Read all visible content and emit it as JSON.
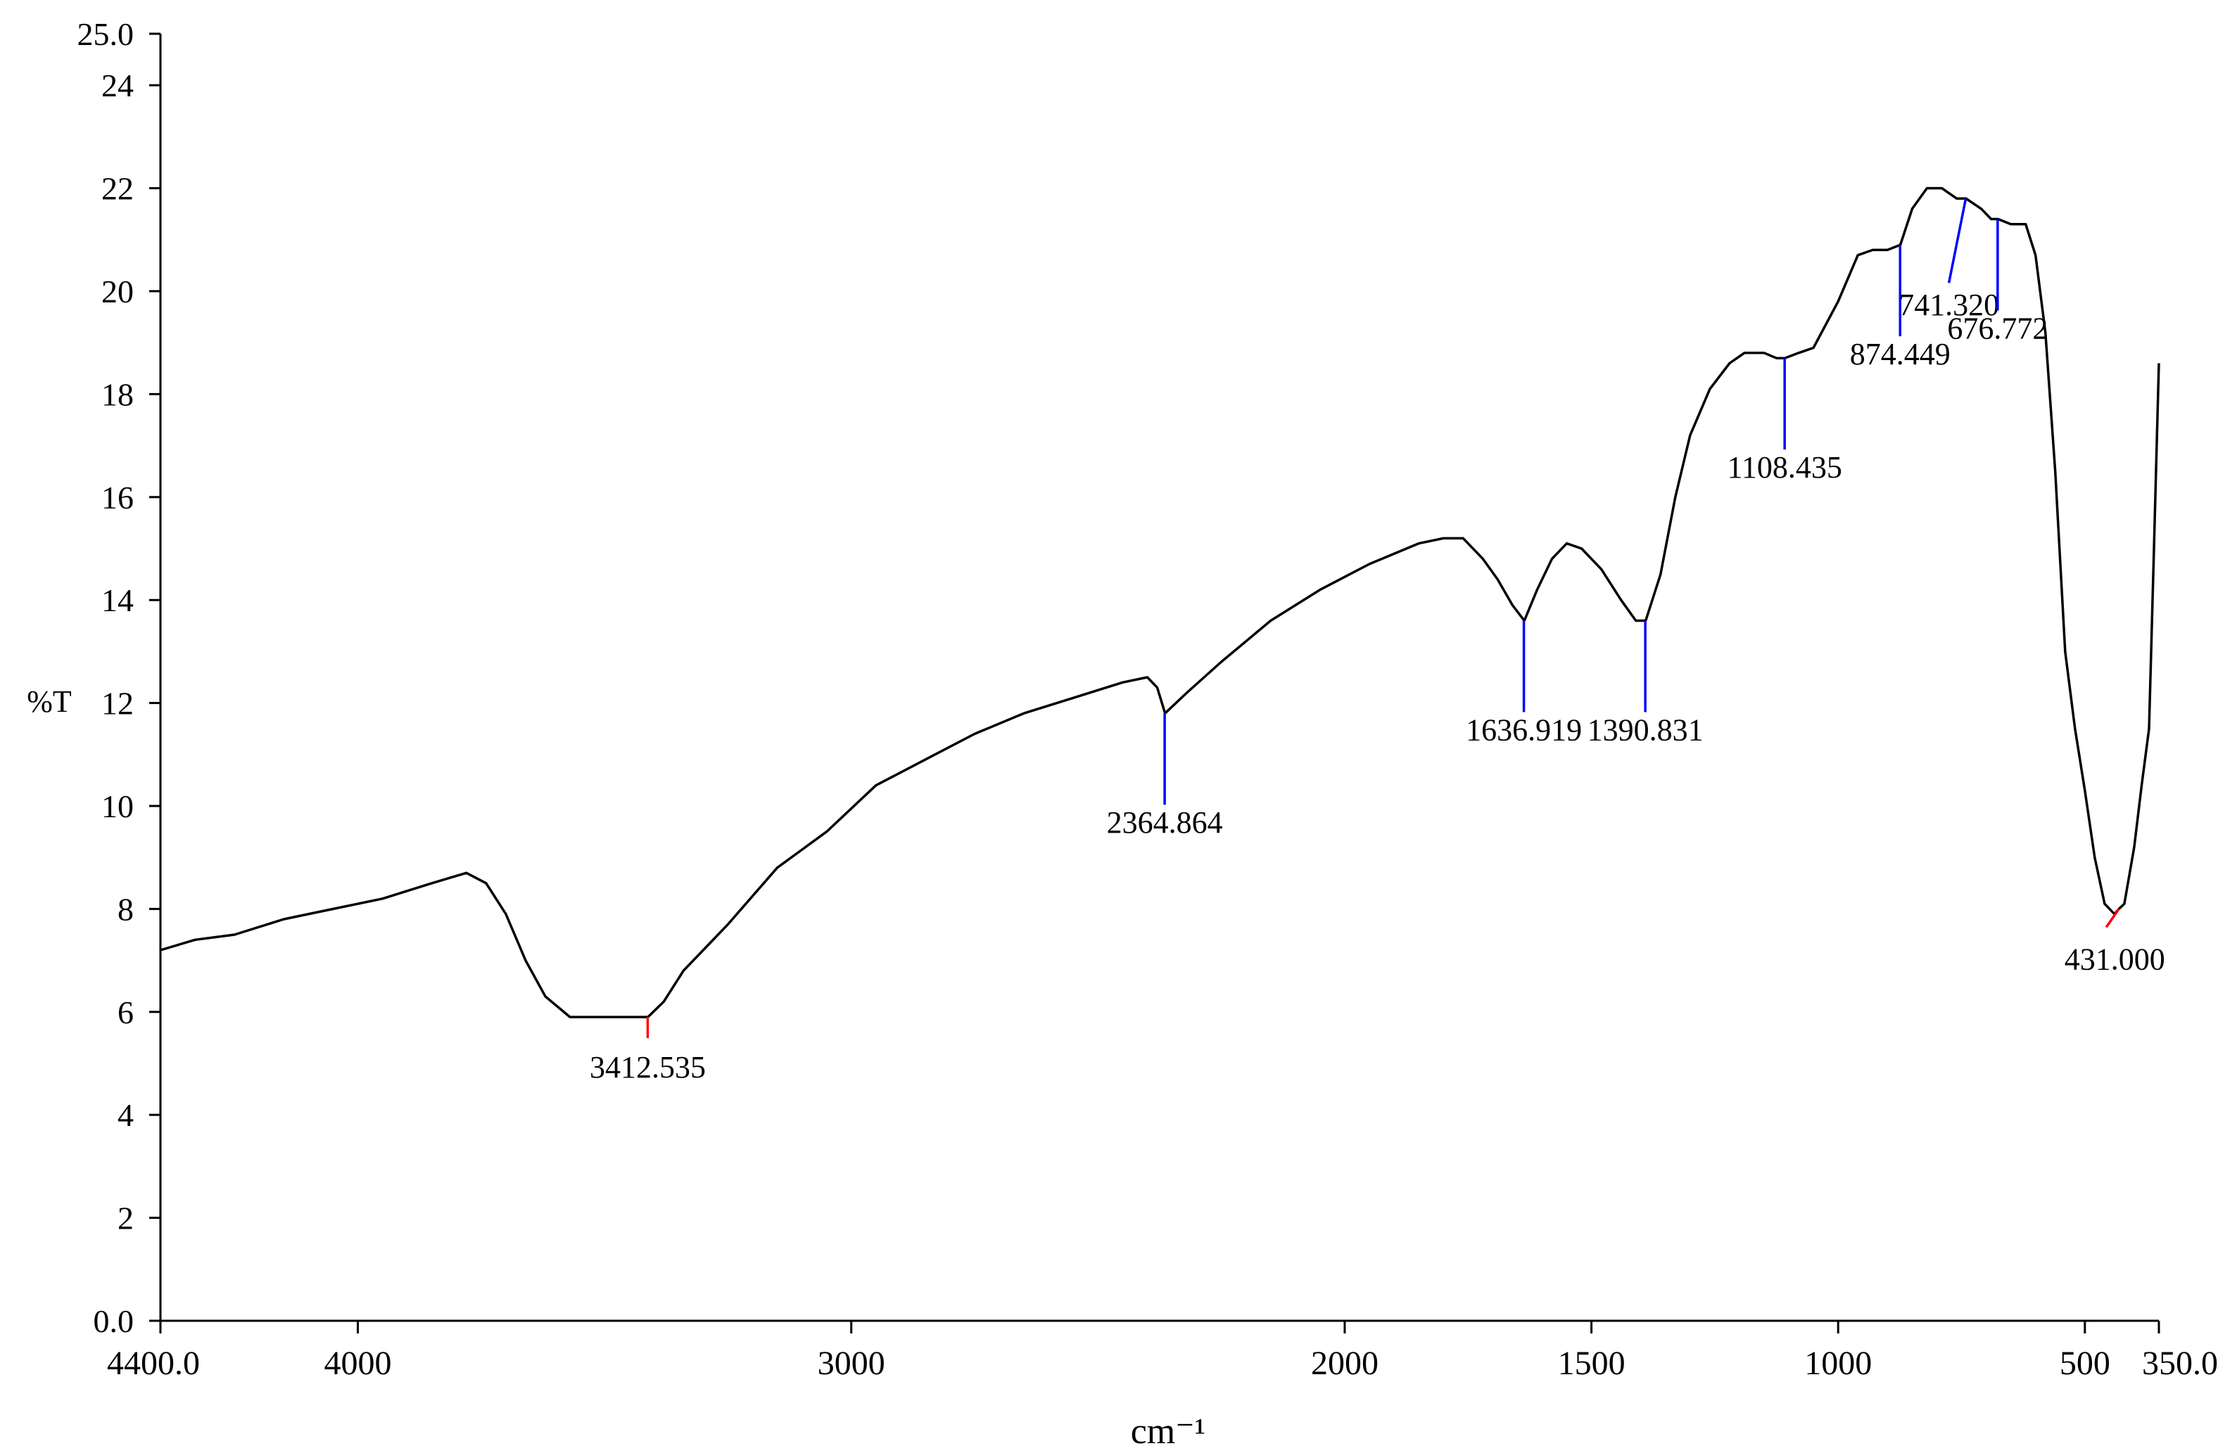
{
  "chart_data": {
    "type": "line",
    "xlabel": "cm⁻¹",
    "ylabel": "%T",
    "xlim": [
      4400,
      350
    ],
    "ylim": [
      0,
      25
    ],
    "x_ticks": [
      {
        "value": 4400,
        "label": "4400.0"
      },
      {
        "value": 4000,
        "label": "4000"
      },
      {
        "value": 3000,
        "label": "3000"
      },
      {
        "value": 2000,
        "label": "2000"
      },
      {
        "value": 1500,
        "label": "1500"
      },
      {
        "value": 1000,
        "label": "1000"
      },
      {
        "value": 500,
        "label": "500"
      },
      {
        "value": 350,
        "label": "350.0"
      }
    ],
    "y_ticks": [
      {
        "value": 0,
        "label": "0.0"
      },
      {
        "value": 2,
        "label": "2"
      },
      {
        "value": 4,
        "label": "4"
      },
      {
        "value": 6,
        "label": "6"
      },
      {
        "value": 8,
        "label": "8"
      },
      {
        "value": 10,
        "label": "10"
      },
      {
        "value": 12,
        "label": "12"
      },
      {
        "value": 14,
        "label": "14"
      },
      {
        "value": 16,
        "label": "16"
      },
      {
        "value": 18,
        "label": "18"
      },
      {
        "value": 20,
        "label": "20"
      },
      {
        "value": 22,
        "label": "22"
      },
      {
        "value": 24,
        "label": "24"
      },
      {
        "value": 25,
        "label": "25.0"
      }
    ],
    "grid": false,
    "series": [
      {
        "color": "#000000",
        "x": [
          4400,
          4330,
          4250,
          4150,
          4050,
          3950,
          3850,
          3780,
          3740,
          3700,
          3660,
          3620,
          3570,
          3530,
          3490,
          3450,
          3412,
          3380,
          3340,
          3250,
          3150,
          3050,
          2950,
          2850,
          2750,
          2650,
          2550,
          2450,
          2400,
          2380,
          2364,
          2320,
          2250,
          2150,
          2050,
          1950,
          1850,
          1800,
          1760,
          1720,
          1690,
          1660,
          1636,
          1610,
          1580,
          1550,
          1520,
          1480,
          1440,
          1410,
          1390,
          1360,
          1330,
          1300,
          1260,
          1220,
          1190,
          1150,
          1125,
          1108,
          1080,
          1050,
          1000,
          960,
          930,
          900,
          874,
          850,
          820,
          790,
          760,
          741,
          710,
          690,
          676,
          650,
          620,
          600,
          580,
          560,
          540,
          520,
          500,
          480,
          460,
          440,
          431,
          420,
          400,
          385,
          370,
          360,
          350
        ],
        "y": [
          7.2,
          7.4,
          7.5,
          7.8,
          8.0,
          8.2,
          8.5,
          8.7,
          8.5,
          7.9,
          7.0,
          6.3,
          5.9,
          5.9,
          5.9,
          5.9,
          5.9,
          6.2,
          6.8,
          7.7,
          8.8,
          9.5,
          10.4,
          10.9,
          11.4,
          11.8,
          12.1,
          12.4,
          12.5,
          12.3,
          11.8,
          12.2,
          12.8,
          13.6,
          14.2,
          14.7,
          15.1,
          15.2,
          15.2,
          14.8,
          14.4,
          13.9,
          13.6,
          14.2,
          14.8,
          15.1,
          15.0,
          14.6,
          14.0,
          13.6,
          13.6,
          14.5,
          16.0,
          17.2,
          18.1,
          18.6,
          18.8,
          18.8,
          18.7,
          18.7,
          18.8,
          18.9,
          19.8,
          20.7,
          20.8,
          20.8,
          20.9,
          21.6,
          22.0,
          22.0,
          21.8,
          21.8,
          21.6,
          21.4,
          21.4,
          21.3,
          21.3,
          20.7,
          19.2,
          16.5,
          13.0,
          11.5,
          10.3,
          9.0,
          8.1,
          7.9,
          8.0,
          8.1,
          9.2,
          10.4,
          11.5,
          15.0,
          18.6
        ]
      }
    ],
    "annotations": [
      {
        "x": 3412.535,
        "y": 5.9,
        "label": "3412.535",
        "color": "#ff0000"
      },
      {
        "x": 2364.864,
        "y": 11.8,
        "label": "2364.864",
        "color": "#0000ff"
      },
      {
        "x": 1636.919,
        "y": 13.6,
        "label": "1636.919",
        "color": "#0000ff"
      },
      {
        "x": 1390.831,
        "y": 13.6,
        "label": "1390.831",
        "color": "#0000ff"
      },
      {
        "x": 1108.435,
        "y": 18.7,
        "label": "1108.435",
        "color": "#0000ff"
      },
      {
        "x": 874.449,
        "y": 20.9,
        "label": "874.449",
        "color": "#0000ff"
      },
      {
        "x": 741.32,
        "y": 21.8,
        "label": "741.320",
        "color": "#0000ff"
      },
      {
        "x": 676.772,
        "y": 21.4,
        "label": "676.772",
        "color": "#0000ff"
      },
      {
        "x": 431.0,
        "y": 8.0,
        "label": "431.000",
        "color": "#ff0000"
      }
    ]
  }
}
